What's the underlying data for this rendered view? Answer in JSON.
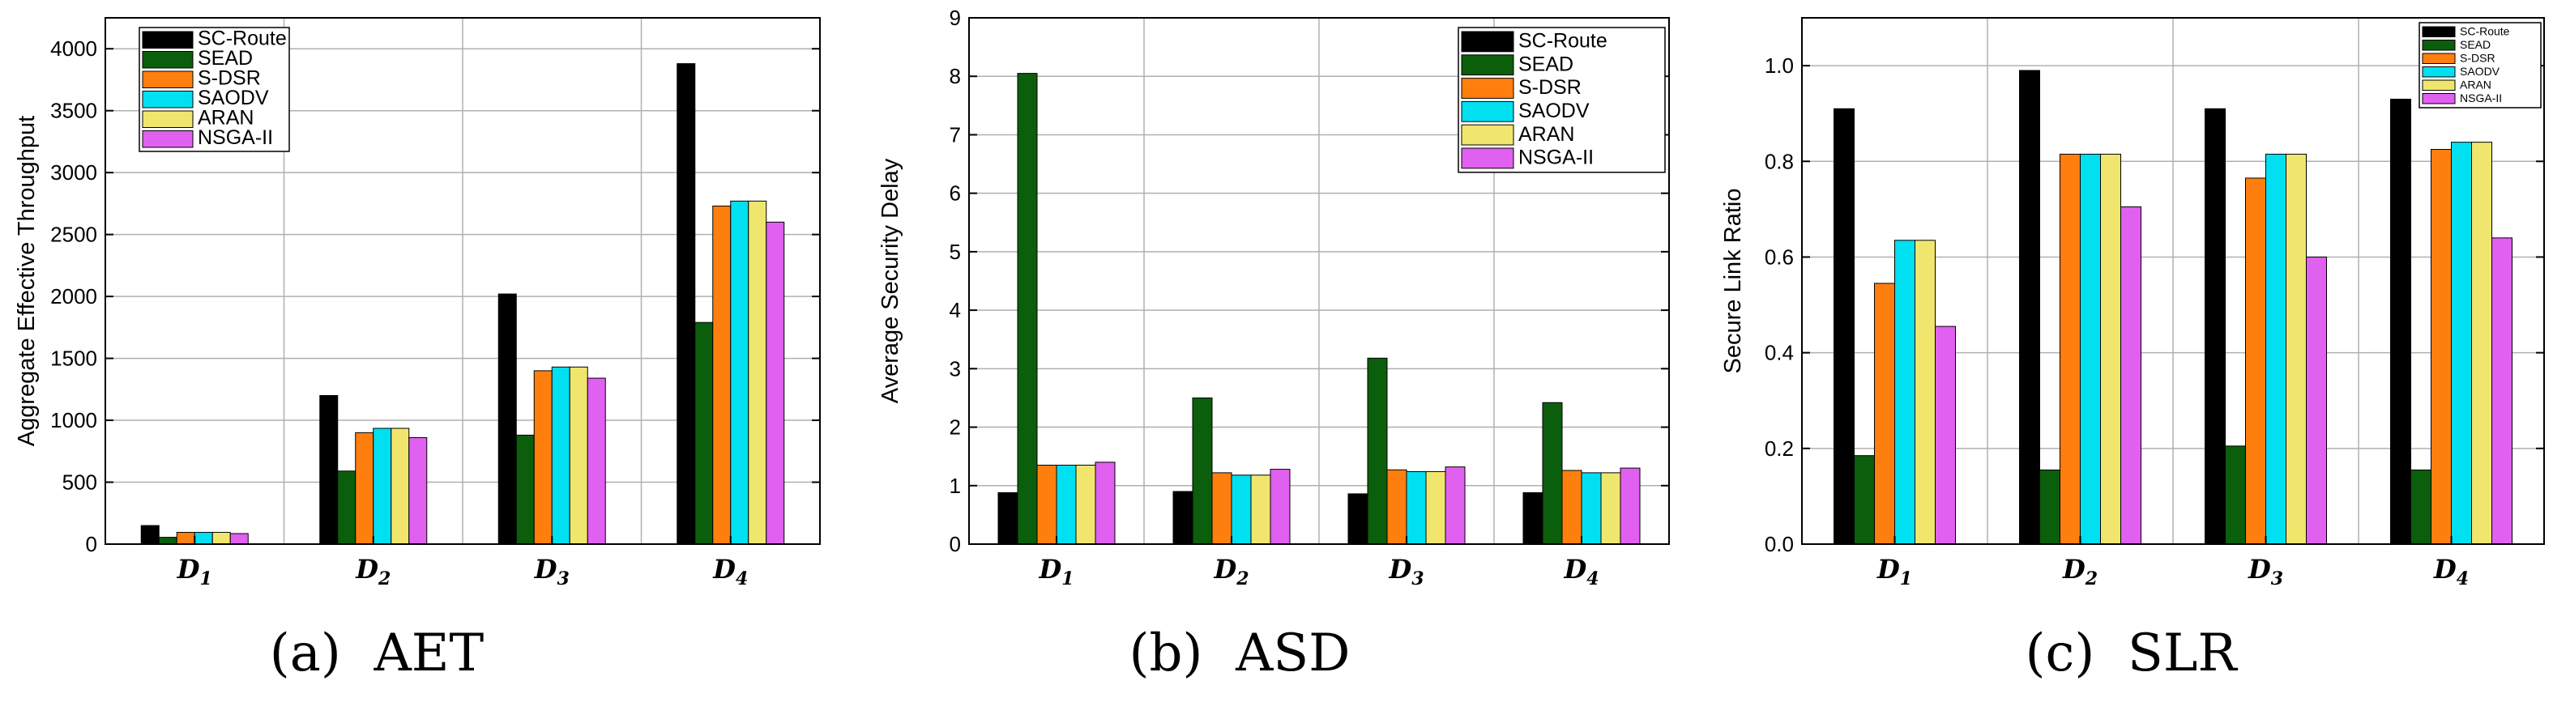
{
  "chart_data": [
    {
      "type": "bar",
      "caption": "(a)  AET",
      "ylabel": "Aggregate Effective Throughput",
      "xlabel": "",
      "categories": [
        "D1",
        "D2",
        "D3",
        "D4"
      ],
      "ylim": [
        0,
        4250
      ],
      "yticks": [
        0,
        500,
        1000,
        1500,
        2000,
        2500,
        3000,
        3500,
        4000
      ],
      "grid": true,
      "legend": "top-left",
      "series": [
        {
          "name": "SC-Route",
          "color": "#000000",
          "values": [
            150,
            1200,
            2020,
            3880
          ]
        },
        {
          "name": "SEAD",
          "color": "#0b5e0b",
          "values": [
            55,
            590,
            880,
            1790
          ]
        },
        {
          "name": "S-DSR",
          "color": "#ff7f0e",
          "values": [
            95,
            900,
            1400,
            2730
          ]
        },
        {
          "name": "SAODV",
          "color": "#00e0f0",
          "values": [
            95,
            935,
            1430,
            2770
          ]
        },
        {
          "name": "ARAN",
          "color": "#f0e66e",
          "values": [
            95,
            935,
            1430,
            2770
          ]
        },
        {
          "name": "NSGA-II",
          "color": "#e060f0",
          "values": [
            85,
            860,
            1340,
            2600
          ]
        }
      ]
    },
    {
      "type": "bar",
      "caption": "(b)  ASD",
      "ylabel": "Average Security Delay",
      "xlabel": "",
      "categories": [
        "D1",
        "D2",
        "D3",
        "D4"
      ],
      "ylim": [
        0,
        9
      ],
      "yticks": [
        0,
        1,
        2,
        3,
        4,
        5,
        6,
        7,
        8,
        9
      ],
      "grid": true,
      "legend": "top-right",
      "series": [
        {
          "name": "SC-Route",
          "color": "#000000",
          "values": [
            0.88,
            0.9,
            0.86,
            0.88
          ]
        },
        {
          "name": "SEAD",
          "color": "#0b5e0b",
          "values": [
            8.05,
            2.5,
            3.18,
            2.42
          ]
        },
        {
          "name": "S-DSR",
          "color": "#ff7f0e",
          "values": [
            1.35,
            1.22,
            1.27,
            1.26
          ]
        },
        {
          "name": "SAODV",
          "color": "#00e0f0",
          "values": [
            1.35,
            1.18,
            1.24,
            1.22
          ]
        },
        {
          "name": "ARAN",
          "color": "#f0e66e",
          "values": [
            1.35,
            1.18,
            1.24,
            1.22
          ]
        },
        {
          "name": "NSGA-II",
          "color": "#e060f0",
          "values": [
            1.4,
            1.28,
            1.32,
            1.3
          ]
        }
      ]
    },
    {
      "type": "bar",
      "caption": "(c)  SLR",
      "ylabel": "Secure Link Ratio",
      "xlabel": "",
      "categories": [
        "D1",
        "D2",
        "D3",
        "D4"
      ],
      "ylim": [
        0,
        1.1
      ],
      "yticks": [
        0.0,
        0.2,
        0.4,
        0.6,
        0.8,
        1.0
      ],
      "ytick_labels": [
        "0.0",
        "0.2",
        "0.4",
        "0.6",
        "0.8",
        "1.0"
      ],
      "grid": true,
      "legend": "top-right",
      "series": [
        {
          "name": "SC-Route",
          "color": "#000000",
          "values": [
            0.91,
            0.99,
            0.91,
            0.93
          ]
        },
        {
          "name": "SEAD",
          "color": "#0b5e0b",
          "values": [
            0.185,
            0.155,
            0.205,
            0.155
          ]
        },
        {
          "name": "S-DSR",
          "color": "#ff7f0e",
          "values": [
            0.545,
            0.815,
            0.765,
            0.825
          ]
        },
        {
          "name": "SAODV",
          "color": "#00e0f0",
          "values": [
            0.635,
            0.815,
            0.815,
            0.84
          ]
        },
        {
          "name": "ARAN",
          "color": "#f0e66e",
          "values": [
            0.635,
            0.815,
            0.815,
            0.84
          ]
        },
        {
          "name": "NSGA-II",
          "color": "#e060f0",
          "values": [
            0.455,
            0.705,
            0.6,
            0.64
          ]
        }
      ]
    }
  ]
}
